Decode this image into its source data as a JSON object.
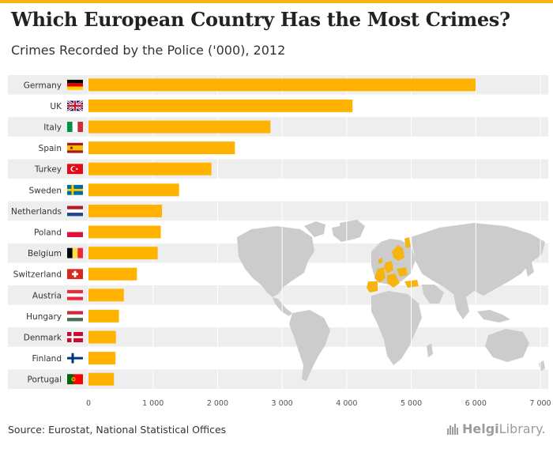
{
  "header": {
    "title": "Which European Country Has the Most Crimes?",
    "subtitle": "Crimes Recorded by the Police ('000), 2012"
  },
  "footer": {
    "source": "Source: Eurostat, National Statistical Offices",
    "logo_bold": "Helgi",
    "logo_rest": "Library."
  },
  "colors": {
    "bar": "#ffb300",
    "band": "#eeeeee",
    "map": "#cccccc",
    "map_highlight": "#f5b40f",
    "accent": "#f5b40f"
  },
  "chart_data": {
    "type": "bar",
    "orientation": "horizontal",
    "title": "Which European Country Has the Most Crimes?",
    "subtitle": "Crimes Recorded by the Police ('000), 2012",
    "categories": [
      "Germany",
      "UK",
      "Italy",
      "Spain",
      "Turkey",
      "Sweden",
      "Netherlands",
      "Poland",
      "Belgium",
      "Switzerland",
      "Austria",
      "Hungary",
      "Denmark",
      "Finland",
      "Portugal"
    ],
    "values": [
      5997,
      4090,
      2819,
      2268,
      1904,
      1403,
      1139,
      1120,
      1072,
      750,
      548,
      472,
      425,
      418,
      395
    ],
    "xlim": [
      0,
      7000
    ],
    "xticks": [
      0,
      1000,
      2000,
      3000,
      4000,
      5000,
      6000,
      7000
    ],
    "xtick_labels": [
      "0",
      "1 000",
      "2 000",
      "3 000",
      "4 000",
      "5 000",
      "6 000",
      "7 000"
    ],
    "alternating_bands": true,
    "legend": "none",
    "flags": [
      "flag-germany-icon",
      "flag-uk-icon",
      "flag-italy-icon",
      "flag-spain-icon",
      "flag-turkey-icon",
      "flag-sweden-icon",
      "flag-netherlands-icon",
      "flag-poland-icon",
      "flag-belgium-icon",
      "flag-switzerland-icon",
      "flag-austria-icon",
      "flag-hungary-icon",
      "flag-denmark-icon",
      "flag-finland-icon",
      "flag-portugal-icon"
    ]
  }
}
